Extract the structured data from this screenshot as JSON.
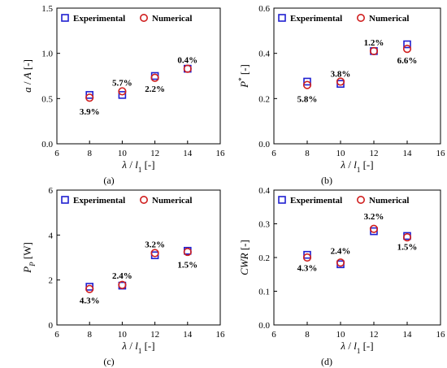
{
  "legend": {
    "experimental": "Experimental",
    "numerical": "Numerical"
  },
  "colors": {
    "experimental": "#1f1fd0",
    "numerical": "#d01f1f",
    "axis": "#000000"
  },
  "chart_data": [
    {
      "type": "scatter",
      "panel_label": "(a)",
      "xlabel": "λ / l₁ [-]",
      "ylabel": "a / A [-]",
      "xlim": [
        6,
        16
      ],
      "ylim": [
        0,
        1.5
      ],
      "xticks": [
        "6",
        "8",
        "10",
        "12",
        "14",
        "16"
      ],
      "yticks": [
        "0.0",
        "0.5",
        "1.0",
        "1.5"
      ],
      "legend_position": "top",
      "series": [
        {
          "name": "Experimental",
          "marker": "square",
          "x": [
            8,
            10,
            12,
            14
          ],
          "y": [
            0.54,
            0.54,
            0.75,
            0.83
          ]
        },
        {
          "name": "Numerical",
          "marker": "circle",
          "x": [
            8,
            10,
            12,
            14
          ],
          "y": [
            0.51,
            0.58,
            0.73,
            0.83
          ]
        }
      ],
      "annotations": [
        {
          "text": "3.9%",
          "x": 8,
          "y": 0.36
        },
        {
          "text": "5.7%",
          "x": 10,
          "y": 0.68
        },
        {
          "text": "2.2%",
          "x": 12,
          "y": 0.61
        },
        {
          "text": "0.4%",
          "x": 14,
          "y": 0.93
        }
      ]
    },
    {
      "type": "scatter",
      "panel_label": "(b)",
      "xlabel": "λ / l₁ [-]",
      "ylabel": "P* [-]",
      "xlim": [
        6,
        16
      ],
      "ylim": [
        0,
        0.6
      ],
      "xticks": [
        "6",
        "8",
        "10",
        "12",
        "14",
        "16"
      ],
      "yticks": [
        "0.0",
        "0.2",
        "0.4",
        "0.6"
      ],
      "legend_position": "top",
      "series": [
        {
          "name": "Experimental",
          "marker": "square",
          "x": [
            8,
            10,
            12,
            14
          ],
          "y": [
            0.275,
            0.265,
            0.41,
            0.44
          ]
        },
        {
          "name": "Numerical",
          "marker": "circle",
          "x": [
            8,
            10,
            12,
            14
          ],
          "y": [
            0.26,
            0.275,
            0.41,
            0.42
          ]
        }
      ],
      "annotations": [
        {
          "text": "5.8%",
          "x": 8,
          "y": 0.2
        },
        {
          "text": "3.8%",
          "x": 10,
          "y": 0.31
        },
        {
          "text": "1.2%",
          "x": 12,
          "y": 0.45
        },
        {
          "text": "6.6%",
          "x": 14,
          "y": 0.37
        }
      ]
    },
    {
      "type": "scatter",
      "panel_label": "(c)",
      "xlabel": "λ / l₁ [-]",
      "ylabel": "P_P [W]",
      "xlim": [
        6,
        16
      ],
      "ylim": [
        0,
        6
      ],
      "xticks": [
        "6",
        "8",
        "10",
        "12",
        "14",
        "16"
      ],
      "yticks": [
        "0",
        "2",
        "4",
        "6"
      ],
      "legend_position": "top",
      "series": [
        {
          "name": "Experimental",
          "marker": "square",
          "x": [
            8,
            10,
            12,
            14
          ],
          "y": [
            1.7,
            1.75,
            3.1,
            3.3
          ]
        },
        {
          "name": "Numerical",
          "marker": "circle",
          "x": [
            8,
            10,
            12,
            14
          ],
          "y": [
            1.6,
            1.78,
            3.2,
            3.25
          ]
        }
      ],
      "annotations": [
        {
          "text": "4.3%",
          "x": 8,
          "y": 1.1
        },
        {
          "text": "2.4%",
          "x": 10,
          "y": 2.2
        },
        {
          "text": "3.2%",
          "x": 12,
          "y": 3.6
        },
        {
          "text": "1.5%",
          "x": 14,
          "y": 2.7
        }
      ]
    },
    {
      "type": "scatter",
      "panel_label": "(d)",
      "xlabel": "λ / l₁ [-]",
      "ylabel": "CWR [-]",
      "xlim": [
        6,
        16
      ],
      "ylim": [
        0,
        0.4
      ],
      "xticks": [
        "6",
        "8",
        "10",
        "12",
        "14",
        "16"
      ],
      "yticks": [
        "0.0",
        "0.1",
        "0.2",
        "0.3",
        "0.4"
      ],
      "legend_position": "top",
      "series": [
        {
          "name": "Experimental",
          "marker": "square",
          "x": [
            8,
            10,
            12,
            14
          ],
          "y": [
            0.208,
            0.18,
            0.278,
            0.264
          ]
        },
        {
          "name": "Numerical",
          "marker": "circle",
          "x": [
            8,
            10,
            12,
            14
          ],
          "y": [
            0.2,
            0.185,
            0.285,
            0.26
          ]
        }
      ],
      "annotations": [
        {
          "text": "4.3%",
          "x": 8,
          "y": 0.17
        },
        {
          "text": "2.4%",
          "x": 10,
          "y": 0.22
        },
        {
          "text": "3.2%",
          "x": 12,
          "y": 0.323
        },
        {
          "text": "1.5%",
          "x": 14,
          "y": 0.232
        }
      ]
    }
  ]
}
